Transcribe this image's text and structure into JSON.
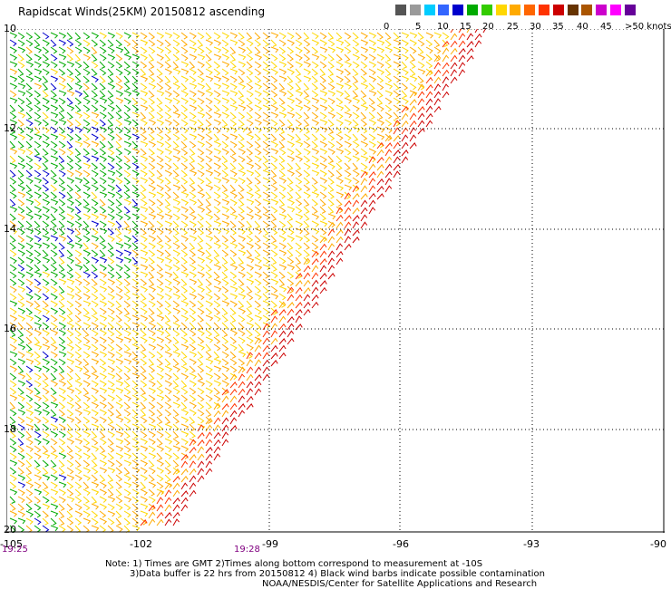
{
  "header": {
    "title": "Rapidscat Winds(25KM) 20150812 ascending"
  },
  "legend": {
    "unit_label": ">50 knots",
    "ticks": [
      "0",
      "5",
      "10",
      "15",
      "20",
      "25",
      "30",
      "35",
      "40",
      "45"
    ],
    "colors": [
      "#555555",
      "#9a9a9a",
      "#00ccff",
      "#3366ff",
      "#0000cc",
      "#00aa00",
      "#33cc00",
      "#ffd700",
      "#ffaa00",
      "#ff6600",
      "#ff3300",
      "#cc0000",
      "#663300",
      "#aa5500",
      "#cc00cc",
      "#ff00ff",
      "#660099"
    ]
  },
  "map": {
    "lat_labels": [
      "10",
      "12",
      "14",
      "16",
      "18",
      "20"
    ],
    "lon_labels": [
      "-105",
      "-102",
      "-99",
      "-96",
      "-93",
      "-90"
    ],
    "time_labels": [
      "19:25",
      "19:28"
    ],
    "swath_colors": {
      "low": "#00aa00",
      "calm": "#0000cc",
      "mid": "#ffd700",
      "mid2": "#ffaa00",
      "high": "#ff3300",
      "edge": "#cc0000"
    }
  },
  "footer": {
    "note_line1": "Note: 1) Times are GMT 2)Times along bottom correspond to measurement at -10S",
    "note_line2": "3)Data buffer is 22 hrs from 20150812 4) Black wind barbs indicate possible contamination",
    "credit": "NOAA/NESDIS/Center for Satellite Applications and Research"
  }
}
